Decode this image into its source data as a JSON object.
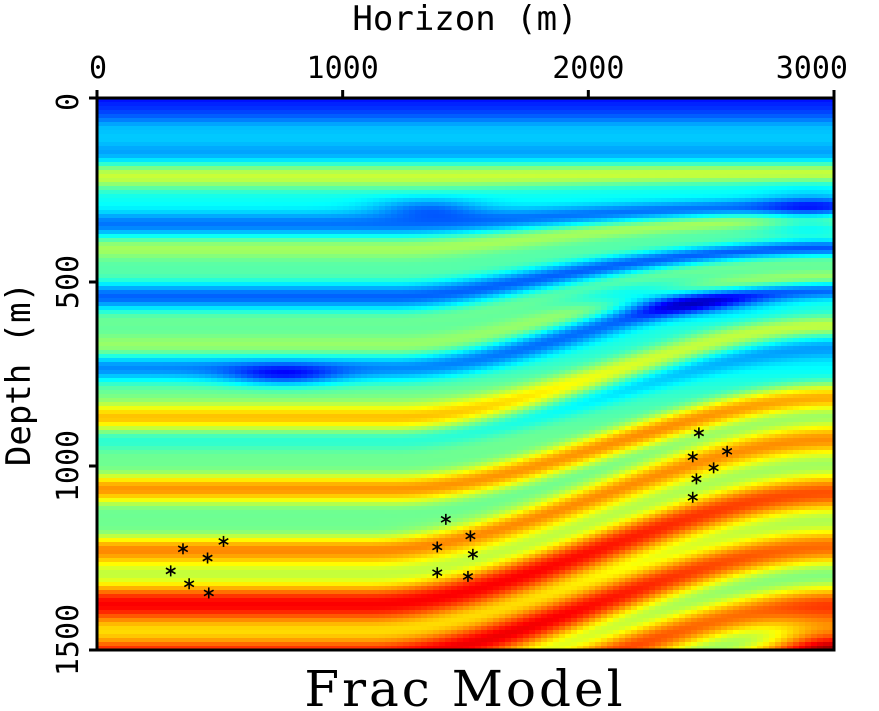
{
  "chart_data": {
    "type": "heatmap",
    "title": "Frac Model",
    "xlabel": "Horizon (m)",
    "ylabel": "Depth (m)",
    "xlim": [
      0,
      3000
    ],
    "ylim": [
      0,
      1500
    ],
    "x_axis_position": "top",
    "y_axis_inverted": true,
    "x_ticks": [
      "0",
      "1000",
      "2000",
      "3000"
    ],
    "y_ticks": [
      "0",
      "500",
      "1000",
      "1500"
    ],
    "colormap": "jet",
    "grid": false,
    "legend": "none",
    "colors": {
      "jet": [
        "#00008f",
        "#0000ff",
        "#0080ff",
        "#00ffff",
        "#80ff80",
        "#ffff00",
        "#ff8000",
        "#ff0000",
        "#800000"
      ],
      "marker": "#000000"
    },
    "series": [
      {
        "marker": "*",
        "points": [
          {
            "x": 300,
            "y": 1285
          },
          {
            "x": 350,
            "y": 1225
          },
          {
            "x": 375,
            "y": 1320
          },
          {
            "x": 450,
            "y": 1250
          },
          {
            "x": 455,
            "y": 1345
          },
          {
            "x": 515,
            "y": 1205
          },
          {
            "x": 1385,
            "y": 1220
          },
          {
            "x": 1385,
            "y": 1290
          },
          {
            "x": 1420,
            "y": 1145
          },
          {
            "x": 1510,
            "y": 1300
          },
          {
            "x": 1520,
            "y": 1190
          },
          {
            "x": 1530,
            "y": 1240
          },
          {
            "x": 2425,
            "y": 975
          },
          {
            "x": 2425,
            "y": 1085
          },
          {
            "x": 2440,
            "y": 1035
          },
          {
            "x": 2450,
            "y": 910
          },
          {
            "x": 2510,
            "y": 1005
          },
          {
            "x": 2565,
            "y": 960
          }
        ]
      }
    ]
  }
}
